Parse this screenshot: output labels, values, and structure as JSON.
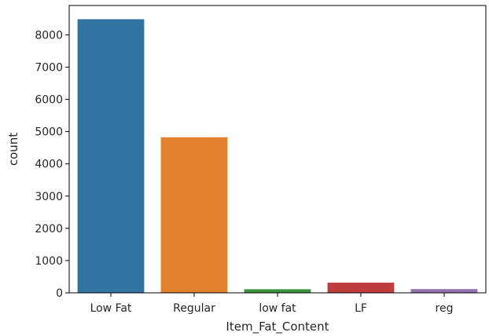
{
  "chart_data": {
    "type": "bar",
    "categories": [
      "Low Fat",
      "Regular",
      "low fat",
      "LF",
      "reg"
    ],
    "values": [
      8485,
      4824,
      112,
      316,
      117
    ],
    "colors": [
      "#3274a1",
      "#e1812c",
      "#3a923a",
      "#c03d3e",
      "#9372b2"
    ],
    "title": "",
    "xlabel": "Item_Fat_Content",
    "ylabel": "count",
    "ylim": [
      0,
      8910
    ],
    "yticks": [
      0,
      1000,
      2000,
      3000,
      4000,
      5000,
      6000,
      7000,
      8000
    ],
    "grid": false,
    "legend": "none"
  }
}
